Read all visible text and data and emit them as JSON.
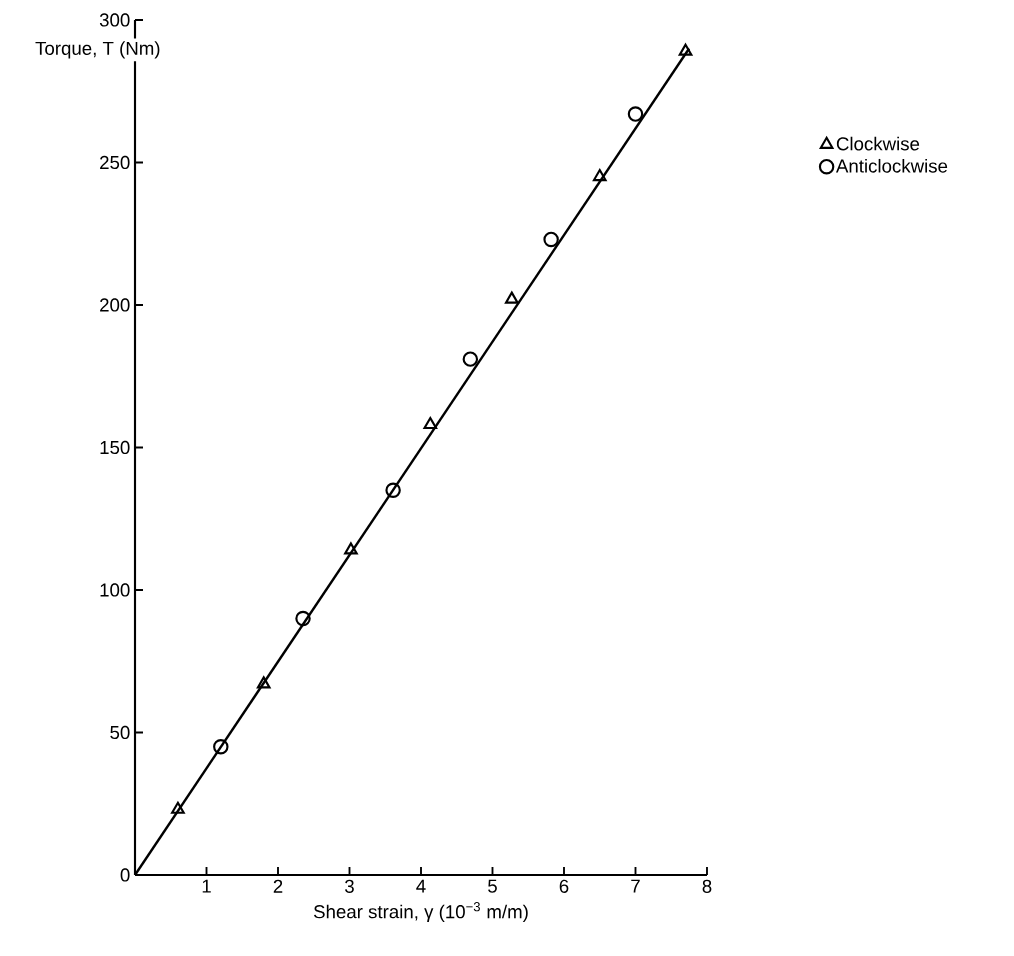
{
  "chart_data": {
    "type": "scatter",
    "xlabel": "Shear strain, γ (10$^{−3}$ m/m)",
    "ylabel": "Torque, T (Nm)",
    "xlim": [
      0,
      8
    ],
    "ylim": [
      0,
      300
    ],
    "xticks": [
      1,
      2,
      3,
      4,
      5,
      6,
      7,
      8
    ],
    "yticks": [
      0,
      50,
      100,
      150,
      200,
      250,
      300
    ],
    "legend": "top right",
    "series": [
      {
        "type": "line",
        "color": "#000000",
        "marker": "none",
        "x": [
          0,
          7.75
        ],
        "values": [
          0,
          290
        ]
      },
      {
        "name": "Clockwise",
        "color": "#000000",
        "marker": "triangle",
        "x": [
          0.6,
          1.8,
          3.02,
          4.13,
          5.27,
          6.5,
          7.7
        ],
        "values": [
          23,
          67,
          114,
          158,
          202,
          245,
          289
        ]
      },
      {
        "name": "Anticlockwise",
        "color": "#000000",
        "marker": "circle",
        "x": [
          1.2,
          2.35,
          3.61,
          4.69,
          5.82,
          7.0
        ],
        "values": [
          45,
          90,
          135,
          181,
          223,
          267
        ]
      }
    ]
  }
}
